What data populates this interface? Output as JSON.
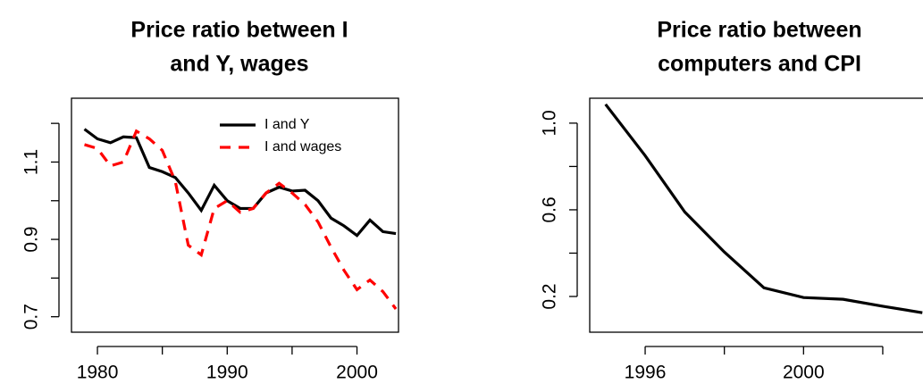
{
  "chart_data": [
    {
      "type": "line",
      "title": [
        "Price ratio between I",
        "and Y, wages"
      ],
      "x": [
        1979,
        1980,
        1981,
        1982,
        1983,
        1984,
        1985,
        1986,
        1987,
        1988,
        1989,
        1990,
        1991,
        1992,
        1993,
        1994,
        1995,
        1996,
        1997,
        1998,
        1999,
        2000,
        2001,
        2002,
        2003
      ],
      "series": [
        {
          "name": "I and Y",
          "color": "#000000",
          "dash": false,
          "values": [
            1.185,
            1.16,
            1.15,
            1.165,
            1.163,
            1.086,
            1.075,
            1.06,
            1.02,
            0.975,
            1.04,
            1.0,
            0.98,
            0.98,
            1.02,
            1.035,
            1.025,
            1.027,
            1.0,
            0.955,
            0.935,
            0.91,
            0.95,
            0.92,
            0.915
          ]
        },
        {
          "name": "I and wages",
          "color": "#ff0000",
          "dash": true,
          "values": [
            1.145,
            1.135,
            1.09,
            1.1,
            1.18,
            1.16,
            1.13,
            1.05,
            0.885,
            0.86,
            0.98,
            1.0,
            0.97,
            0.98,
            1.02,
            1.045,
            1.02,
            0.99,
            0.945,
            0.88,
            0.82,
            0.77,
            0.795,
            0.765,
            0.72
          ]
        }
      ],
      "xlim": [
        1978,
        2003.2
      ],
      "xticks": [
        1980,
        {
          "value": 1985,
          "label": null
        },
        1990,
        {
          "value": 1995,
          "label": null
        },
        2000
      ],
      "ylim": [
        0.66,
        1.265
      ],
      "yticks": [
        0.7,
        {
          "value": 0.8,
          "label": null
        },
        0.9,
        {
          "value": 1.0,
          "label": null
        },
        1.1,
        {
          "value": 1.2,
          "label": null
        }
      ],
      "legend": "top-right"
    },
    {
      "type": "line",
      "title": [
        "Price ratio between",
        "computers and CPI"
      ],
      "x": [
        1995,
        1996,
        1997,
        1998,
        1999,
        2000,
        2001,
        2002,
        2003
      ],
      "series": [
        {
          "name": null,
          "color": "#000000",
          "dash": false,
          "values": [
            1.087,
            0.85,
            0.59,
            0.405,
            0.24,
            0.195,
            0.187,
            0.155,
            0.125
          ]
        }
      ],
      "xlim": [
        1994.6,
        2003.4
      ],
      "xticks": [
        1996,
        {
          "value": 1998,
          "label": null
        },
        2000,
        {
          "value": 2002,
          "label": null
        }
      ],
      "ylim": [
        0.035,
        1.115
      ],
      "yticks": [
        0.2,
        {
          "value": 0.4,
          "label": null
        },
        0.6,
        {
          "value": 0.8,
          "label": null
        },
        {
          "value": 1.0,
          "label": "1.0"
        }
      ],
      "legend": null
    }
  ]
}
